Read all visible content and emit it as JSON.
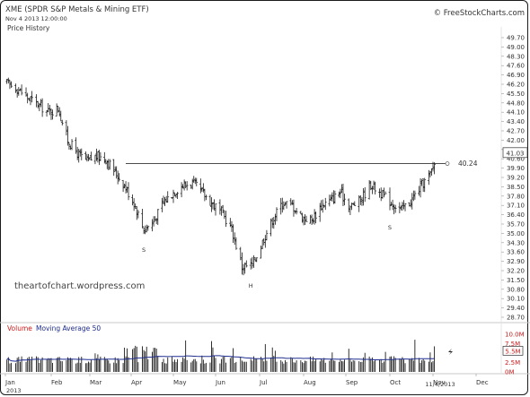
{
  "header": {
    "title": "XME (SPDR S&P Metals & Mining ETF)",
    "timestamp": "Nov 4 2013 12:00:00",
    "source": "© FreeStockCharts.com",
    "panel_label": "Price History"
  },
  "watermark": "theartofchart.wordpress.com",
  "colors": {
    "bars": "#1a1a1a",
    "ma_line": "#1f2d8f",
    "volume_label": "#cc1a1a",
    "neckline": "#333333",
    "background": "#ffffff"
  },
  "chart_data": {
    "type": "bar",
    "price_panel": {
      "title": "Price History",
      "y_axis_ticks": [
        "49.70",
        "49.00",
        "48.30",
        "47.60",
        "46.90",
        "46.20",
        "45.50",
        "44.80",
        "44.10",
        "43.40",
        "42.70",
        "42.00",
        "41.30",
        "40.60",
        "39.90",
        "39.20",
        "38.50",
        "37.80",
        "37.10",
        "36.40",
        "35.70",
        "35.00",
        "34.30",
        "33.60",
        "32.90",
        "32.20",
        "31.50",
        "30.80",
        "30.10",
        "29.40",
        "28.70"
      ],
      "ylim": [
        28.7,
        49.7
      ],
      "last_price_label": "41.03",
      "neckline": {
        "value": 40.24,
        "label": "40.24"
      },
      "pattern_labels": [
        {
          "text": "S",
          "date": "Apr 10"
        },
        {
          "text": "H",
          "date": "Jun 25"
        },
        {
          "text": "S",
          "date": "Oct 1"
        }
      ],
      "weekly_ohlc_approx": {
        "dates": [
          "Jan 2",
          "Jan 9",
          "Jan 16",
          "Jan 23",
          "Jan 30",
          "Feb 6",
          "Feb 13",
          "Feb 20",
          "Feb 27",
          "Mar 6",
          "Mar 13",
          "Mar 20",
          "Mar 27",
          "Apr 3",
          "Apr 10",
          "Apr 17",
          "Apr 24",
          "May 1",
          "May 8",
          "May 15",
          "May 22",
          "May 29",
          "Jun 5",
          "Jun 12",
          "Jun 19",
          "Jun 26",
          "Jul 3",
          "Jul 10",
          "Jul 17",
          "Jul 24",
          "Jul 31",
          "Aug 7",
          "Aug 14",
          "Aug 21",
          "Aug 28",
          "Sep 4",
          "Sep 11",
          "Sep 18",
          "Sep 25",
          "Oct 2",
          "Oct 9",
          "Oct 16",
          "Oct 23",
          "Oct 30",
          "Nov 4"
        ],
        "close": [
          46.3,
          45.9,
          45.2,
          44.7,
          44.1,
          44.4,
          42.0,
          41.0,
          40.4,
          40.8,
          40.6,
          39.6,
          38.6,
          37.3,
          35.3,
          35.9,
          37.3,
          38.1,
          38.6,
          38.8,
          38.1,
          37.3,
          36.6,
          35.3,
          32.5,
          32.6,
          34.4,
          36.0,
          37.3,
          37.1,
          36.2,
          36.0,
          37.1,
          37.5,
          38.1,
          37.0,
          37.5,
          38.7,
          38.0,
          37.3,
          36.8,
          37.4,
          38.5,
          39.4,
          40.9
        ]
      }
    },
    "volume_panel": {
      "labels": [
        "Volume",
        "Moving Average 50"
      ],
      "y_axis_ticks": [
        "10.0M",
        "7.5M",
        "5.5M",
        "2.5M",
        "0M"
      ],
      "last_volume_label": "5.5M",
      "ylim": [
        0,
        10000000
      ]
    },
    "x_axis": {
      "ticks": [
        "Jan",
        "Feb",
        "Mar",
        "Apr",
        "May",
        "Jun",
        "Jul",
        "Aug",
        "Sep",
        "Oct",
        "Nov",
        "Dec"
      ],
      "year_label": "2013",
      "current_date_label": "11/4/2013"
    }
  }
}
